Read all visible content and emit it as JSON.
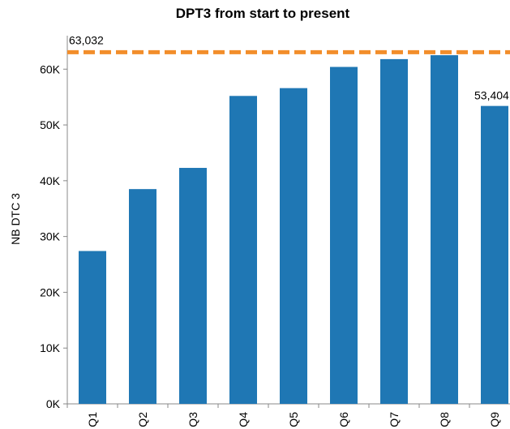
{
  "chart_data": {
    "type": "bar",
    "title": "DPT3 from start to present",
    "y_label": "NB DTC 3",
    "categories": [
      "Q1",
      "Q2",
      "Q3",
      "Q4",
      "Q5",
      "Q6",
      "Q7",
      "Q8",
      "Q9"
    ],
    "values": [
      27400,
      38500,
      42300,
      55200,
      56600,
      60400,
      61800,
      62500,
      53404
    ],
    "value_labels": [
      null,
      null,
      null,
      null,
      null,
      null,
      null,
      null,
      "53,404"
    ],
    "color": "#1f77b4",
    "ylim": [
      0,
      66000
    ],
    "yticks": [
      {
        "value": 0,
        "label": "0K"
      },
      {
        "value": 10000,
        "label": "10K"
      },
      {
        "value": 20000,
        "label": "20K"
      },
      {
        "value": 30000,
        "label": "30K"
      },
      {
        "value": 40000,
        "label": "40K"
      },
      {
        "value": 50000,
        "label": "50K"
      },
      {
        "value": 60000,
        "label": "60K"
      }
    ],
    "reference_line": {
      "value": 63032,
      "label": "63,032",
      "color": "#f28e2b"
    },
    "grid": false
  }
}
